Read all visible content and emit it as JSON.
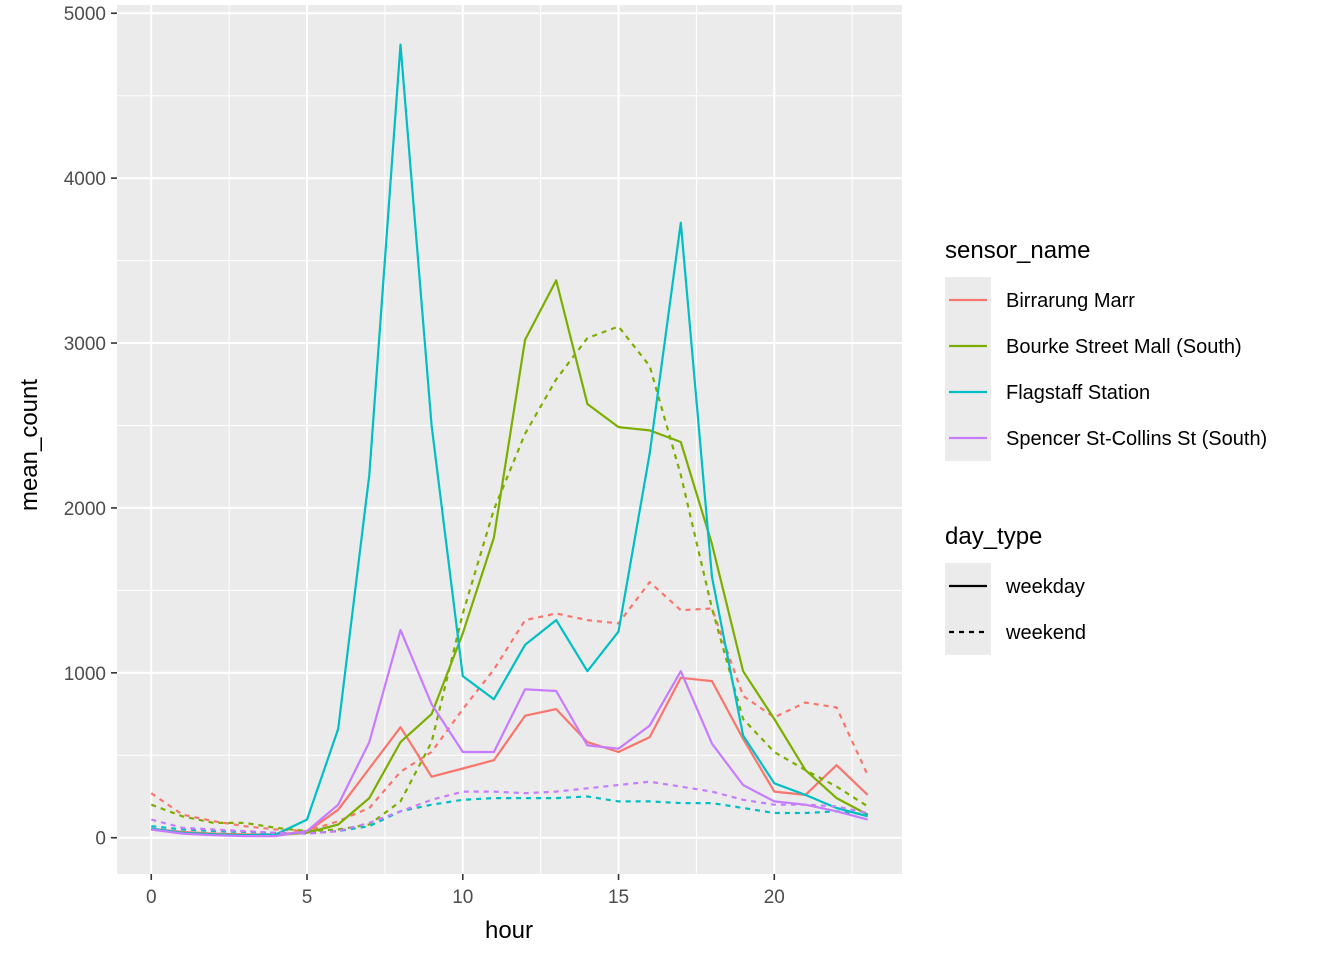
{
  "chart_data": {
    "type": "line",
    "title": "",
    "xlabel": "hour",
    "ylabel": "mean_count",
    "xlim": [
      -1.1,
      24.1
    ],
    "ylim": [
      -220,
      5050
    ],
    "x_ticks": [
      0,
      5,
      10,
      15,
      20
    ],
    "y_ticks": [
      0,
      1000,
      2000,
      3000,
      4000,
      5000
    ],
    "x_tick_labels": [
      "0",
      "5",
      "10",
      "15",
      "20"
    ],
    "y_tick_labels": [
      "0",
      "1000",
      "2000",
      "3000",
      "4000",
      "5000"
    ],
    "grid": true,
    "legend_placement": "right",
    "x": [
      0,
      1,
      2,
      3,
      4,
      5,
      6,
      7,
      8,
      9,
      10,
      11,
      12,
      13,
      14,
      15,
      16,
      17,
      18,
      19,
      20,
      21,
      22,
      23
    ],
    "legends": [
      {
        "title": "sensor_name",
        "entries": [
          {
            "label": "Birrarung Marr",
            "color": "#F8766D"
          },
          {
            "label": "Bourke Street Mall (South)",
            "color": "#7CAE00"
          },
          {
            "label": "Flagstaff Station",
            "color": "#00BFC4"
          },
          {
            "label": "Spencer St-Collins St (South)",
            "color": "#C77CFF"
          }
        ]
      },
      {
        "title": "day_type",
        "entries": [
          {
            "label": "weekday",
            "linetype": "solid"
          },
          {
            "label": "weekend",
            "linetype": "dashed"
          }
        ]
      }
    ],
    "series": [
      {
        "sensor": "Birrarung Marr",
        "day_type": "weekday",
        "color": "#F8766D",
        "values": [
          55,
          35,
          25,
          20,
          20,
          35,
          170,
          420,
          670,
          370,
          420,
          470,
          740,
          780,
          580,
          520,
          610,
          970,
          950,
          600,
          280,
          260,
          440,
          260
        ]
      },
      {
        "sensor": "Birrarung Marr",
        "day_type": "weekend",
        "color": "#F8766D",
        "values": [
          270,
          140,
          100,
          70,
          50,
          40,
          100,
          180,
          400,
          520,
          780,
          1020,
          1320,
          1360,
          1320,
          1300,
          1550,
          1380,
          1390,
          860,
          730,
          820,
          790,
          380
        ]
      },
      {
        "sensor": "Bourke Street Mall (South)",
        "day_type": "weekday",
        "color": "#7CAE00",
        "values": [
          50,
          30,
          20,
          15,
          15,
          30,
          80,
          240,
          580,
          750,
          1240,
          1820,
          3020,
          3380,
          2630,
          2490,
          2470,
          2400,
          1780,
          1010,
          720,
          410,
          240,
          140
        ]
      },
      {
        "sensor": "Bourke Street Mall (South)",
        "day_type": "weekend",
        "color": "#7CAE00",
        "values": [
          200,
          130,
          90,
          90,
          60,
          40,
          50,
          80,
          220,
          580,
          1360,
          1990,
          2450,
          2780,
          3030,
          3100,
          2860,
          2200,
          1390,
          720,
          520,
          410,
          310,
          190
        ]
      },
      {
        "sensor": "Flagstaff Station",
        "day_type": "weekday",
        "color": "#00BFC4",
        "values": [
          55,
          30,
          20,
          15,
          20,
          110,
          660,
          2200,
          4810,
          2500,
          980,
          840,
          1170,
          1320,
          1010,
          1250,
          2330,
          3730,
          1580,
          620,
          330,
          260,
          180,
          130
        ]
      },
      {
        "sensor": "Flagstaff Station",
        "day_type": "weekend",
        "color": "#00BFC4",
        "values": [
          70,
          50,
          40,
          35,
          30,
          25,
          40,
          70,
          160,
          200,
          230,
          240,
          240,
          240,
          250,
          220,
          220,
          210,
          210,
          180,
          150,
          150,
          160,
          140
        ]
      },
      {
        "sensor": "Spencer St-Collins St (South)",
        "day_type": "weekday",
        "color": "#C77CFF",
        "values": [
          50,
          25,
          15,
          10,
          10,
          40,
          200,
          580,
          1260,
          810,
          520,
          520,
          900,
          890,
          560,
          540,
          680,
          1010,
          570,
          320,
          220,
          200,
          160,
          110
        ]
      },
      {
        "sensor": "Spencer St-Collins St (South)",
        "day_type": "weekend",
        "color": "#C77CFF",
        "values": [
          110,
          60,
          50,
          40,
          30,
          25,
          40,
          90,
          160,
          230,
          280,
          280,
          270,
          280,
          300,
          320,
          340,
          310,
          280,
          230,
          200,
          200,
          190,
          150
        ]
      }
    ]
  }
}
